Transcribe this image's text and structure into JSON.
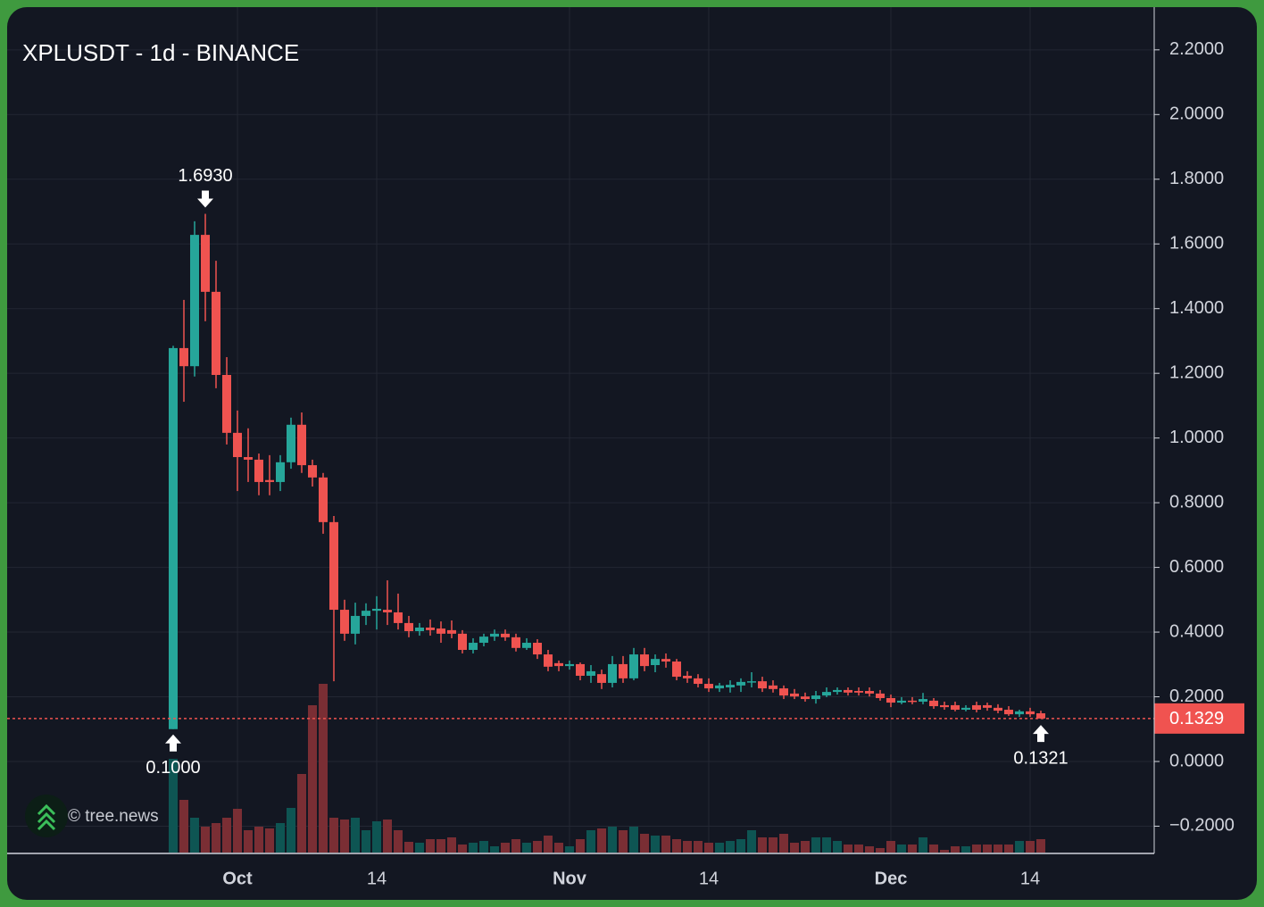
{
  "chart_data": {
    "type": "candlestick",
    "title": "XPLUSDT - 1d - BINANCE",
    "watermark": "© tree.news",
    "categories": [
      null,
      null,
      null,
      null,
      null,
      null,
      "Oct",
      null,
      null,
      null,
      null,
      null,
      null,
      null,
      null,
      null,
      null,
      null,
      null,
      "14",
      null,
      null,
      null,
      null,
      null,
      null,
      null,
      null,
      null,
      null,
      null,
      null,
      null,
      null,
      null,
      null,
      null,
      "Nov",
      null,
      null,
      null,
      null,
      null,
      null,
      null,
      null,
      null,
      null,
      null,
      null,
      "14",
      null,
      null,
      null,
      null,
      null,
      null,
      null,
      null,
      null,
      null,
      null,
      null,
      null,
      null,
      null,
      null,
      "Dec",
      null,
      null,
      null,
      null,
      null,
      null,
      null,
      null,
      null,
      null,
      null,
      null,
      "14",
      null
    ],
    "open": [
      0.1,
      1.278,
      1.222,
      1.628,
      1.452,
      1.195,
      1.016,
      0.941,
      0.933,
      0.87,
      0.864,
      0.925,
      1.041,
      0.916,
      0.878,
      0.74,
      0.469,
      0.395,
      0.45,
      0.466,
      0.469,
      0.461,
      0.428,
      0.403,
      0.414,
      0.411,
      0.406,
      0.395,
      0.345,
      0.367,
      0.386,
      0.395,
      0.384,
      0.351,
      0.367,
      0.331,
      0.304,
      0.295,
      0.301,
      0.265,
      0.27,
      0.243,
      0.301,
      0.257,
      0.331,
      0.298,
      0.317,
      0.309,
      0.265,
      0.257,
      0.24,
      0.226,
      0.229,
      0.235,
      0.246,
      0.248,
      0.235,
      0.226,
      0.21,
      0.201,
      0.193,
      0.204,
      0.215,
      0.221,
      0.218,
      0.218,
      0.21,
      0.196,
      0.182,
      0.188,
      0.185,
      0.188,
      0.174,
      0.174,
      0.16,
      0.174,
      0.174,
      0.166,
      0.16,
      0.146,
      0.155,
      0.149
    ],
    "high": [
      1.285,
      1.427,
      1.67,
      1.693,
      1.548,
      1.25,
      1.085,
      1.03,
      0.952,
      0.947,
      0.947,
      1.063,
      1.079,
      0.933,
      0.892,
      0.759,
      0.5,
      0.491,
      0.489,
      0.511,
      0.56,
      0.519,
      0.45,
      0.428,
      0.439,
      0.433,
      0.436,
      0.406,
      0.381,
      0.395,
      0.408,
      0.408,
      0.395,
      0.381,
      0.378,
      0.345,
      0.312,
      0.312,
      0.306,
      0.298,
      0.284,
      0.326,
      0.326,
      0.351,
      0.351,
      0.331,
      0.334,
      0.317,
      0.279,
      0.27,
      0.257,
      0.243,
      0.251,
      0.257,
      0.276,
      0.262,
      0.251,
      0.235,
      0.224,
      0.213,
      0.218,
      0.229,
      0.229,
      0.229,
      0.229,
      0.229,
      0.221,
      0.207,
      0.199,
      0.199,
      0.212,
      0.196,
      0.185,
      0.185,
      0.174,
      0.185,
      0.182,
      0.177,
      0.171,
      0.16,
      0.166,
      0.157
    ],
    "low": [
      0.1,
      1.112,
      1.19,
      1.361,
      1.154,
      0.98,
      0.836,
      0.864,
      0.823,
      0.823,
      0.836,
      0.905,
      0.892,
      0.85,
      0.704,
      0.248,
      0.373,
      0.362,
      0.422,
      0.408,
      0.422,
      0.408,
      0.384,
      0.389,
      0.389,
      0.367,
      0.381,
      0.334,
      0.334,
      0.356,
      0.373,
      0.373,
      0.34,
      0.345,
      0.317,
      0.279,
      0.279,
      0.284,
      0.251,
      0.243,
      0.224,
      0.229,
      0.243,
      0.251,
      0.279,
      0.276,
      0.29,
      0.251,
      0.243,
      0.229,
      0.215,
      0.215,
      0.213,
      0.215,
      0.229,
      0.215,
      0.213,
      0.193,
      0.193,
      0.185,
      0.179,
      0.199,
      0.207,
      0.204,
      0.204,
      0.201,
      0.188,
      0.168,
      0.177,
      0.177,
      0.177,
      0.163,
      0.16,
      0.155,
      0.155,
      0.152,
      0.157,
      0.149,
      0.141,
      0.138,
      0.138,
      0.1321
    ],
    "close": [
      1.278,
      1.222,
      1.628,
      1.452,
      1.195,
      1.016,
      0.941,
      0.933,
      0.864,
      0.864,
      0.925,
      1.041,
      0.916,
      0.878,
      0.74,
      0.469,
      0.395,
      0.45,
      0.466,
      0.472,
      0.461,
      0.428,
      0.403,
      0.414,
      0.406,
      0.395,
      0.395,
      0.345,
      0.367,
      0.386,
      0.395,
      0.384,
      0.351,
      0.367,
      0.331,
      0.293,
      0.295,
      0.301,
      0.265,
      0.279,
      0.243,
      0.301,
      0.257,
      0.331,
      0.295,
      0.317,
      0.309,
      0.262,
      0.257,
      0.24,
      0.226,
      0.235,
      0.237,
      0.246,
      0.248,
      0.226,
      0.224,
      0.204,
      0.201,
      0.193,
      0.204,
      0.215,
      0.221,
      0.213,
      0.213,
      0.21,
      0.196,
      0.182,
      0.188,
      0.185,
      0.193,
      0.171,
      0.168,
      0.16,
      0.166,
      0.16,
      0.166,
      0.157,
      0.146,
      0.155,
      0.146,
      0.1329
    ],
    "volume": [
      105,
      59,
      39,
      29,
      33,
      39,
      49,
      25,
      29,
      27,
      33,
      50,
      88,
      165,
      189,
      39,
      37,
      39,
      25,
      35,
      37,
      25,
      12,
      11,
      15,
      15,
      17,
      9,
      11,
      13,
      7,
      11,
      15,
      11,
      13,
      19,
      11,
      7,
      15,
      25,
      27,
      29,
      25,
      29,
      21,
      19,
      19,
      15,
      13,
      13,
      11,
      11,
      13,
      15,
      25,
      17,
      17,
      21,
      11,
      13,
      17,
      17,
      13,
      9,
      9,
      7,
      5,
      13,
      9,
      9,
      17,
      9,
      3,
      7,
      7,
      9,
      9,
      9,
      9,
      13,
      13,
      15
    ],
    "up_color": "#26a69a",
    "down_color": "#ef5350",
    "volume_up_color": "#0e5553",
    "volume_down_color": "#7a2e34",
    "ylim": [
      -0.2815,
      2.332
    ],
    "yticks": [
      {
        "value": -0.2,
        "label": "−0.2000"
      },
      {
        "value": 0,
        "label": "0.0000"
      },
      {
        "value": 0.2,
        "label": "0.2000"
      },
      {
        "value": 0.4,
        "label": "0.4000"
      },
      {
        "value": 0.6,
        "label": "0.6000"
      },
      {
        "value": 0.8,
        "label": "0.8000"
      },
      {
        "value": 1,
        "label": "1.0000"
      },
      {
        "value": 1.2,
        "label": "1.2000"
      },
      {
        "value": 1.4,
        "label": "1.4000"
      },
      {
        "value": 1.6,
        "label": "1.6000"
      },
      {
        "value": 1.8,
        "label": "1.8000"
      },
      {
        "value": 2,
        "label": "2.0000"
      },
      {
        "value": 2.2,
        "label": "2.2000"
      }
    ],
    "grid": true,
    "annotations": {
      "max_high": "1.6930",
      "min_low": "0.1000",
      "last_low": "0.1321"
    },
    "last_close_label": "0.1329"
  }
}
